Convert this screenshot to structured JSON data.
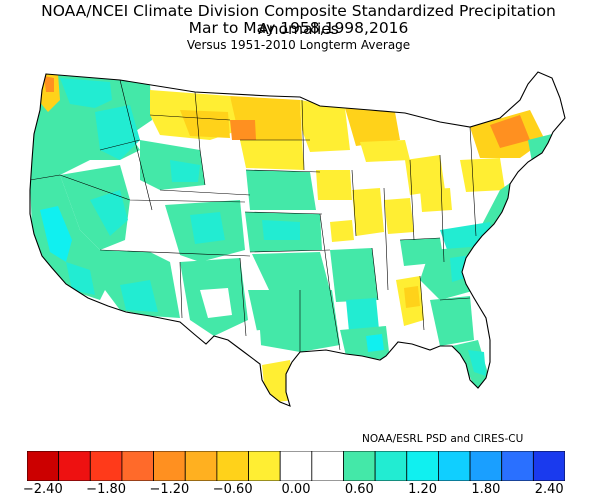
{
  "title_line1": "NOAA/NCEI Climate Division Composite Standardized Precipitation Anomalies",
  "title_line2": "Mar to May  1958,1998,2016",
  "title_line3": "Versus 1951-2010 Longterm Average",
  "credit": "NOAA/ESRL PSD and CIRES-CU",
  "colorbar": {
    "colors": [
      "#cc0000",
      "#ee1111",
      "#ff3a1a",
      "#ff6a2a",
      "#ff9020",
      "#ffb020",
      "#ffd21a",
      "#ffee33",
      "#ffffff",
      "#ffffff",
      "#44e8a8",
      "#22ecd2",
      "#10f0f0",
      "#10cfff",
      "#1a9fff",
      "#2a70ff",
      "#1a3aee"
    ],
    "ticks": [
      {
        "value": -2.4,
        "label": "-2.40"
      },
      {
        "value": -1.8,
        "label": "-1.80"
      },
      {
        "value": -1.2,
        "label": "-1.20"
      },
      {
        "value": -0.6,
        "label": "-0.60"
      },
      {
        "value": 0.0,
        "label": "0.00"
      },
      {
        "value": 0.6,
        "label": "0.60"
      },
      {
        "value": 1.2,
        "label": "1.20"
      },
      {
        "value": 1.8,
        "label": "1.80"
      },
      {
        "value": 2.4,
        "label": "2.40"
      }
    ]
  },
  "palette": {
    "dry_strong": "#ff9020",
    "dry": "#ffd21a",
    "dry_light": "#ffee33",
    "neutral": "#ffffff",
    "wet_light": "#44e8a8",
    "wet": "#22ecd2",
    "wet_strong": "#10f0f0",
    "wet_vstrong": "#10cfff"
  }
}
